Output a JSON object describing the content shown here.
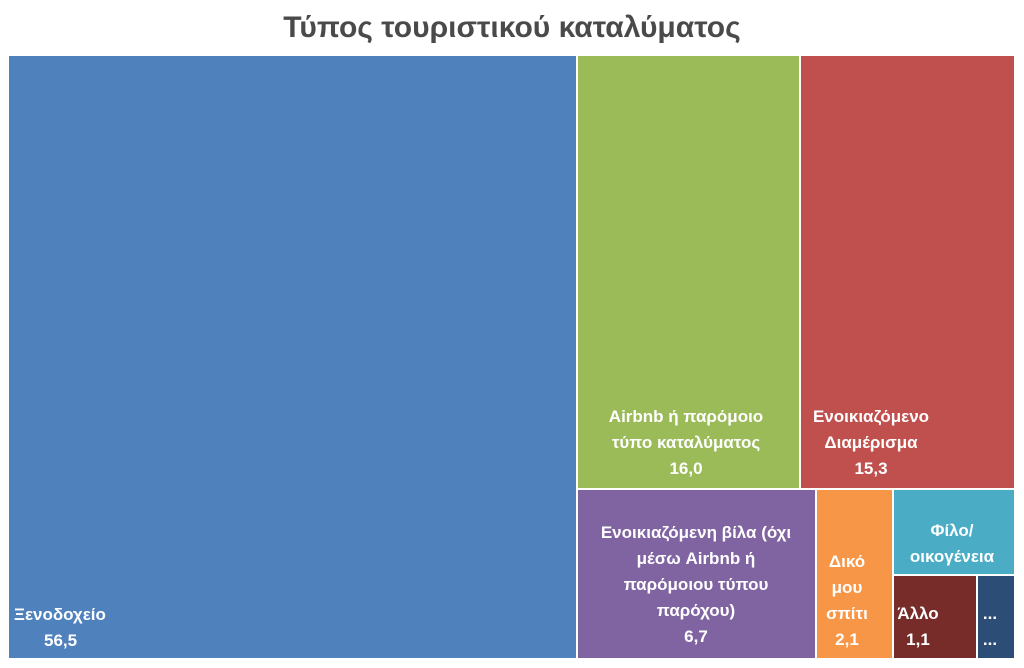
{
  "chart_data": {
    "type": "treemap",
    "title": "Τύπος τουριστικού καταλύματος",
    "items": [
      {
        "label": "Ξενοδοχείο",
        "value_text": "56,5",
        "value": 56.5,
        "color": "#4f81bd"
      },
      {
        "label": "Airbnb ή παρόμοιο τύπο καταλύματος",
        "value_text": "16,0",
        "value": 16.0,
        "color": "#9bbb59"
      },
      {
        "label": "Ενοικιαζόμενο Διαμέρισμα",
        "value_text": "15,3",
        "value": 15.3,
        "color": "#c0504d"
      },
      {
        "label": "Ενοικιαζόμενη βίλα (όχι μέσω Airbnb ή παρόμοιου τύπου παρόχου)",
        "value_text": "6,7",
        "value": 6.7,
        "color": "#8064a2"
      },
      {
        "label": "Δικό μου σπίτι",
        "value_text": "2,1",
        "value": 2.1,
        "color": "#f79646"
      },
      {
        "label": "Φίλο/ οικογένεια",
        "value_text": "",
        "value": null,
        "color": "#4bacc6"
      },
      {
        "label": "Άλλο",
        "value_text": "1,1",
        "value": 1.1,
        "color": "#772c2a"
      },
      {
        "label": "...",
        "value_text": "...",
        "value": null,
        "color": "#2c4d75"
      }
    ]
  }
}
